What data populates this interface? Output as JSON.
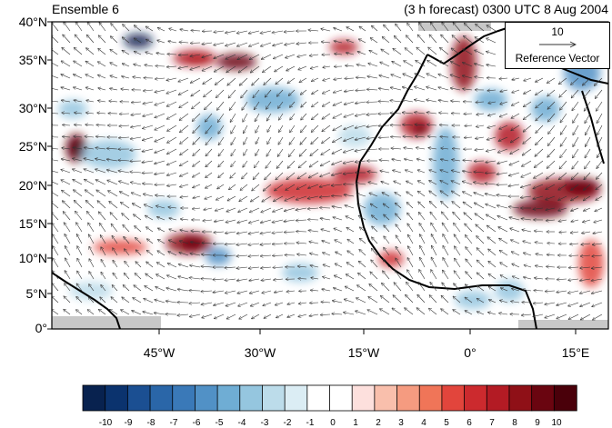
{
  "header": {
    "ensemble_title": "Ensemble 6",
    "forecast_title": "(3 h forecast) 0300 UTC 8 Aug 2004"
  },
  "map": {
    "lat_labels": [
      "40°N",
      "35°N",
      "30°N",
      "25°N",
      "20°N",
      "15°N",
      "10°N",
      "5°N",
      "0°"
    ],
    "lon_labels": [
      "45°W",
      "30°W",
      "15°W",
      "0°",
      "15°E"
    ],
    "reference_vector": {
      "magnitude": "10",
      "label": "Reference Vector"
    },
    "colors": {
      "land_mask": "#c8c8c8",
      "coastline": "#000000",
      "vectors": "#333333"
    }
  },
  "colorbar": {
    "labels": [
      "-10",
      "-9",
      "-8",
      "-7",
      "-6",
      "-5",
      "-4",
      "-3",
      "-2",
      "-1",
      "0",
      "1",
      "2",
      "3",
      "4",
      "5",
      "6",
      "7",
      "8",
      "9",
      "10"
    ],
    "colors": [
      "#08224f",
      "#0b336e",
      "#1b4f92",
      "#2a66a8",
      "#3a79b8",
      "#5191c6",
      "#6fadd4",
      "#95c6df",
      "#bcdcea",
      "#dbedf4",
      "#ffffff",
      "#ffffff",
      "#fde0dd",
      "#f9bfac",
      "#f59b80",
      "#f07558",
      "#e2453c",
      "#cc2a2e",
      "#b31b24",
      "#8f1017",
      "#6a0510",
      "#4a000a"
    ]
  }
}
